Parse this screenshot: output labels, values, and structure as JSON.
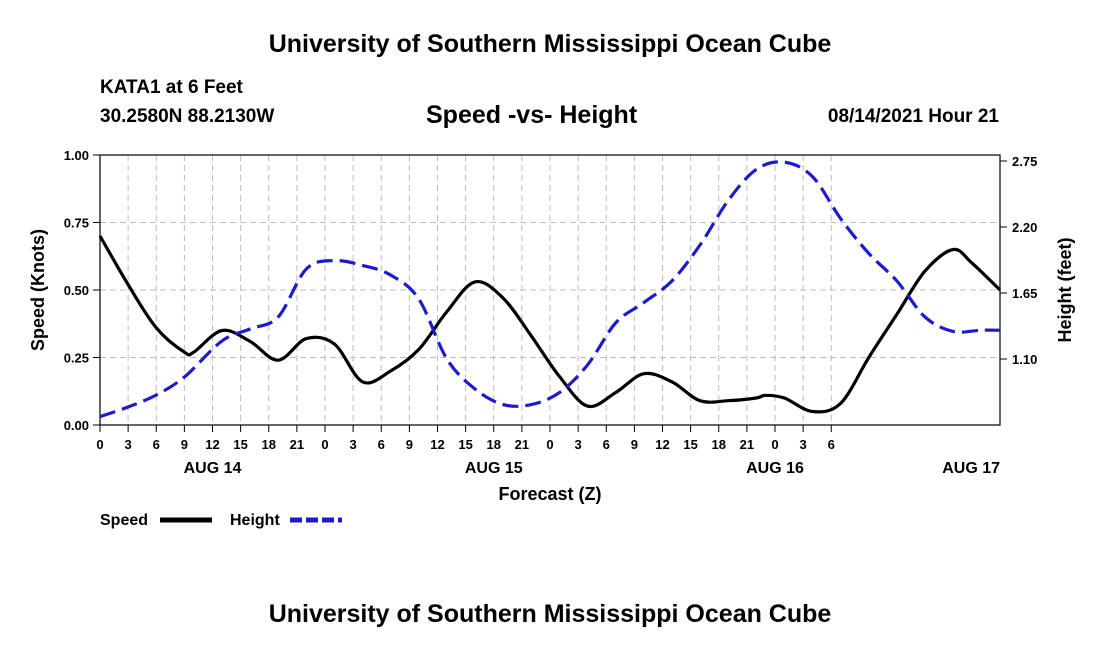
{
  "header": {
    "title_top": "University of Southern Mississippi Ocean Cube",
    "station": "KATA1 at 6 Feet",
    "coords": "30.2580N  88.2130W",
    "subtitle": "Speed -vs- Height",
    "datetime": "08/14/2021 Hour 21",
    "title_bottom": "University of Southern Mississippi Ocean Cube"
  },
  "chart_data": {
    "type": "line",
    "title": "Speed -vs- Height",
    "xlabel": "Forecast (Z)",
    "ylabel": "Speed (Knots)",
    "y2label": "Height (feet)",
    "x_unit": "forecast hours from AUG 14 00Z",
    "xlim": [
      -9,
      87
    ],
    "ylim": [
      0,
      1.0
    ],
    "y2lim": [
      0.55,
      2.8
    ],
    "grid": true,
    "x_ticks": [
      {
        "x": -9,
        "label": "0"
      },
      {
        "x": -6,
        "label": "3"
      },
      {
        "x": -3,
        "label": "6"
      },
      {
        "x": 0,
        "label": "9"
      },
      {
        "x": 3,
        "label": "12"
      },
      {
        "x": 6,
        "label": "15"
      },
      {
        "x": 9,
        "label": "18"
      },
      {
        "x": 12,
        "label": "21"
      },
      {
        "x": 15,
        "label": "0"
      },
      {
        "x": 18,
        "label": "3"
      },
      {
        "x": 21,
        "label": "6"
      },
      {
        "x": 24,
        "label": "9"
      },
      {
        "x": 27,
        "label": "12"
      },
      {
        "x": 30,
        "label": "15"
      },
      {
        "x": 33,
        "label": "18"
      },
      {
        "x": 36,
        "label": "21"
      },
      {
        "x": 39,
        "label": "0"
      },
      {
        "x": 42,
        "label": "3"
      },
      {
        "x": 45,
        "label": "6"
      },
      {
        "x": 48,
        "label": "9"
      },
      {
        "x": 51,
        "label": "12"
      },
      {
        "x": 54,
        "label": "15"
      },
      {
        "x": 57,
        "label": "18"
      },
      {
        "x": 60,
        "label": "21"
      },
      {
        "x": 63,
        "label": "0"
      },
      {
        "x": 66,
        "label": "3"
      },
      {
        "x": 69,
        "label": "6"
      }
    ],
    "date_labels": [
      {
        "x": 3,
        "label": "AUG 14"
      },
      {
        "x": 33,
        "label": "AUG 15"
      },
      {
        "x": 63,
        "label": "AUG 16"
      },
      {
        "x": 87,
        "label": "AUG 17"
      }
    ],
    "y_ticks": [
      {
        "value": 0.0,
        "label": "0.00"
      },
      {
        "value": 0.25,
        "label": "0.25"
      },
      {
        "value": 0.5,
        "label": "0.50"
      },
      {
        "value": 0.75,
        "label": "0.75"
      },
      {
        "value": 1.0,
        "label": "1.00"
      }
    ],
    "y2_ticks": [
      {
        "value": 1.1,
        "label": "1.10"
      },
      {
        "value": 1.65,
        "label": "1.65"
      },
      {
        "value": 2.2,
        "label": "2.20"
      },
      {
        "value": 2.75,
        "label": "2.75"
      }
    ],
    "series": [
      {
        "name": "Speed",
        "axis": "left",
        "color": "#000000",
        "dash": "solid",
        "x": [
          -9,
          -6,
          -3,
          0,
          1,
          4,
          7,
          10,
          13,
          16,
          19,
          22,
          25,
          28,
          31,
          34,
          37,
          40,
          43,
          46,
          49,
          52,
          55,
          58,
          61,
          62,
          64,
          67,
          70,
          73,
          76,
          79,
          82,
          84,
          87
        ],
        "y": [
          0.7,
          0.52,
          0.36,
          0.27,
          0.27,
          0.35,
          0.31,
          0.24,
          0.32,
          0.3,
          0.16,
          0.2,
          0.28,
          0.42,
          0.53,
          0.47,
          0.33,
          0.18,
          0.07,
          0.12,
          0.19,
          0.16,
          0.09,
          0.09,
          0.1,
          0.11,
          0.1,
          0.05,
          0.08,
          0.25,
          0.41,
          0.57,
          0.65,
          0.6,
          0.5
        ]
      },
      {
        "name": "Height",
        "axis": "right",
        "color": "#1c1ccc",
        "dash": "dashed",
        "x": [
          -9,
          -6,
          -3,
          0,
          4,
          7,
          10,
          13,
          16,
          19,
          22,
          25,
          28,
          31,
          34,
          37,
          40,
          43,
          46,
          49,
          52,
          55,
          58,
          61,
          64,
          67,
          70,
          73,
          76,
          79,
          82,
          85,
          87
        ],
        "y": [
          0.62,
          0.7,
          0.8,
          0.95,
          1.25,
          1.35,
          1.45,
          1.85,
          1.92,
          1.88,
          1.8,
          1.6,
          1.1,
          0.85,
          0.72,
          0.72,
          0.82,
          1.05,
          1.4,
          1.57,
          1.75,
          2.05,
          2.42,
          2.68,
          2.74,
          2.62,
          2.27,
          1.98,
          1.75,
          1.45,
          1.33,
          1.34,
          1.34
        ]
      }
    ],
    "legend": [
      {
        "name": "Speed",
        "color": "#000000",
        "dash": "solid"
      },
      {
        "name": "Height",
        "color": "#1c1ccc",
        "dash": "dashed"
      }
    ],
    "legend_position": "below-left"
  }
}
